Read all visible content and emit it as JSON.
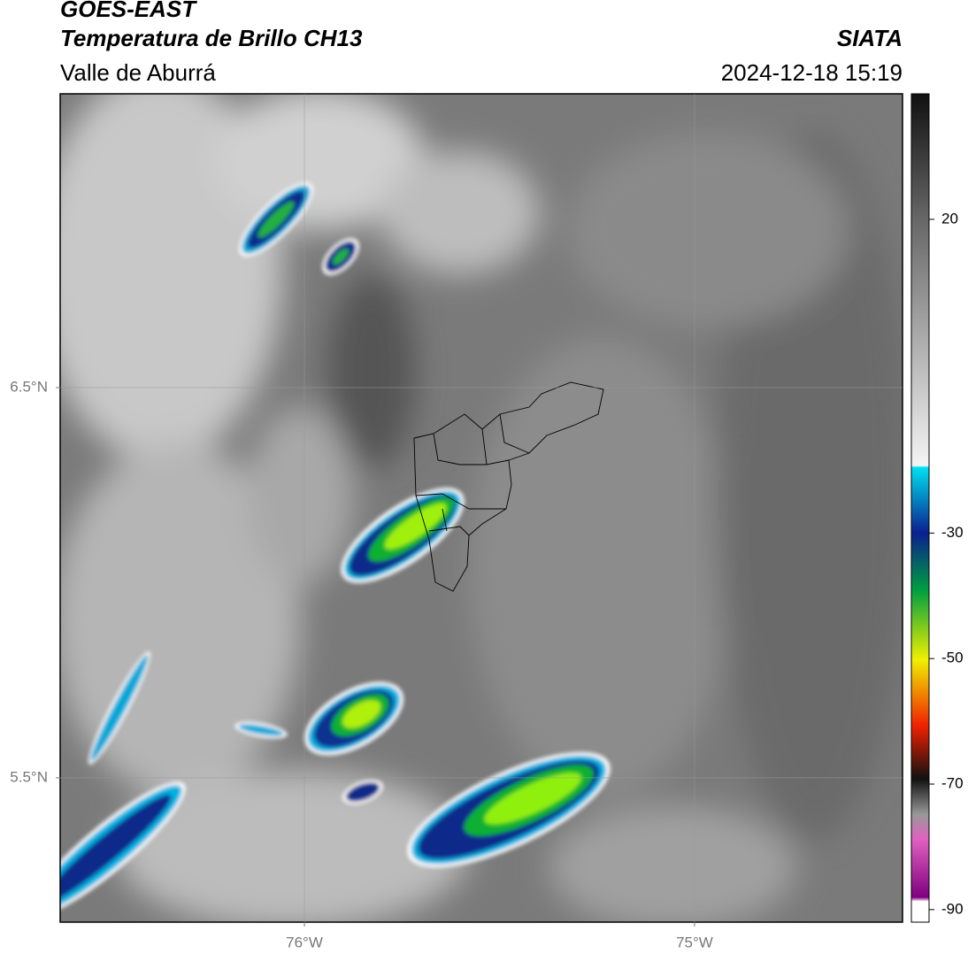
{
  "map": {
    "title": "GOES-EAST",
    "subtitle": "Temperatura de Brillo CH13",
    "source": "SIATA",
    "region": "Valle de Aburrá",
    "datetime": "2024-12-18 15:19",
    "xlim": [
      -76.626,
      -74.467
    ],
    "ylim": [
      5.13,
      7.253
    ],
    "xticks": [
      {
        "value": -76,
        "label": "76°W"
      },
      {
        "value": -75,
        "label": "75°W"
      }
    ],
    "yticks": [
      {
        "value": 6.5,
        "label": "6.5°N"
      },
      {
        "value": 5.5,
        "label": "5.5°N"
      }
    ],
    "grid": true,
    "colorbar": {
      "lim": [
        -92,
        40
      ],
      "ticks": [
        20,
        -30,
        -50,
        -70,
        -90
      ]
    }
  }
}
